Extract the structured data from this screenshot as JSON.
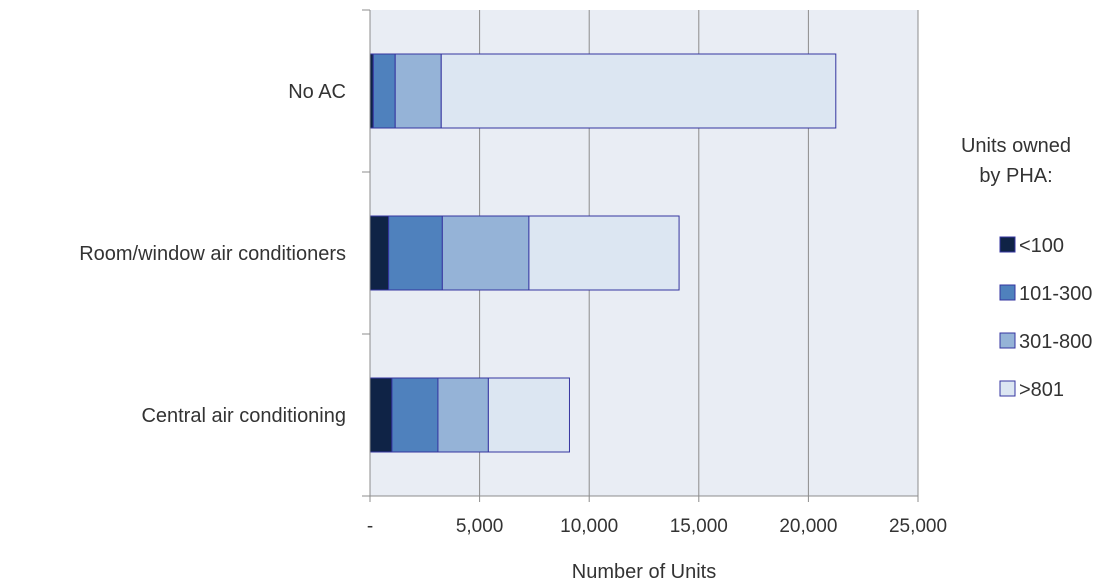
{
  "chart_data": {
    "type": "bar",
    "orientation": "horizontal",
    "stacked": true,
    "categories": [
      "No AC",
      "Room/window air conditioners",
      "Central air conditioning"
    ],
    "series": [
      {
        "name": "<100",
        "color": "#0f2346",
        "values": [
          150,
          850,
          1000
        ]
      },
      {
        "name": "101-300",
        "color": "#4f81bd",
        "values": [
          1000,
          2450,
          2100
        ]
      },
      {
        "name": "301-800",
        "color": "#95b3d7",
        "values": [
          2100,
          3950,
          2300
        ]
      },
      {
        "name": ">801",
        "color": "#dce6f2",
        "values": [
          18000,
          6850,
          3700
        ]
      }
    ],
    "xlabel": "Number of Units",
    "xlim": [
      0,
      25000
    ],
    "x_ticks": [
      0,
      5000,
      10000,
      15000,
      20000,
      25000
    ],
    "x_tick_labels": [
      "-",
      "5,000",
      "10,000",
      "15,000",
      "20,000",
      "25,000"
    ],
    "grid": "vertical",
    "plot_background": "#e9edf4",
    "bar_edge_color": "#3535a0",
    "legend": {
      "title": "Units owned by PHA:",
      "title_lines": [
        "Units owned",
        "by PHA:"
      ],
      "placement": "right"
    }
  }
}
